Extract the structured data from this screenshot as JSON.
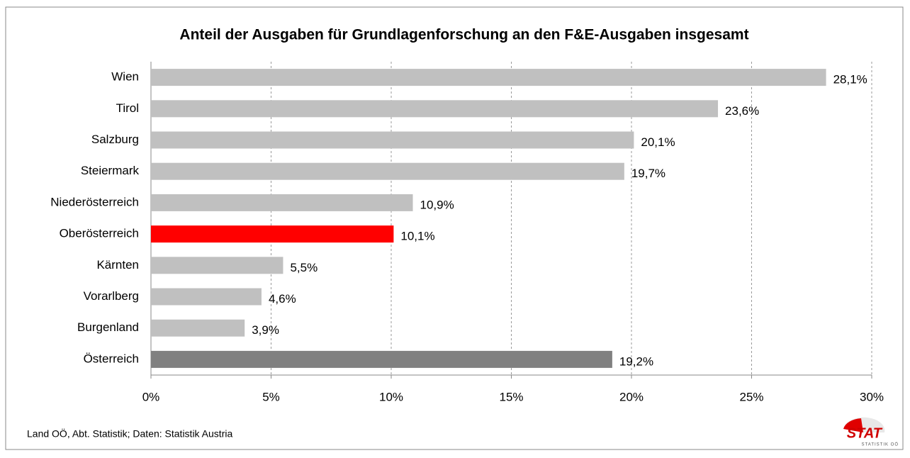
{
  "chart_data": {
    "type": "hbar",
    "title": "Anteil der Ausgaben für Grundlagenforschung an den F&E-Ausgaben insgesamt",
    "categories": [
      "Wien",
      "Tirol",
      "Salzburg",
      "Steiermark",
      "Niederösterreich",
      "Oberösterreich",
      "Kärnten",
      "Vorarlberg",
      "Burgenland",
      "Österreich"
    ],
    "values": [
      28.1,
      23.6,
      20.1,
      19.7,
      10.9,
      10.1,
      5.5,
      4.6,
      3.9,
      19.2
    ],
    "value_labels": [
      "28,1%",
      "23,6%",
      "20,1%",
      "19,7%",
      "10,9%",
      "10,1%",
      "5,5%",
      "4,6%",
      "3,9%",
      "19,2%"
    ],
    "colors": [
      "#c0c0c0",
      "#c0c0c0",
      "#c0c0c0",
      "#c0c0c0",
      "#c0c0c0",
      "#ff0000",
      "#c0c0c0",
      "#c0c0c0",
      "#c0c0c0",
      "#808080"
    ],
    "xlim": [
      0,
      30
    ],
    "xticks": [
      {
        "value": 0,
        "label": "0%"
      },
      {
        "value": 5,
        "label": "5%"
      },
      {
        "value": 10,
        "label": "10%"
      },
      {
        "value": 15,
        "label": "15%"
      },
      {
        "value": 20,
        "label": "20%"
      },
      {
        "value": 25,
        "label": "25%"
      },
      {
        "value": 30,
        "label": "30%"
      }
    ],
    "grid": true,
    "source": "Land OÖ, Abt. Statistik; Daten: Statistik Austria",
    "logo": {
      "text": "STAT",
      "subtext": "STATISTIK OÖ"
    }
  }
}
